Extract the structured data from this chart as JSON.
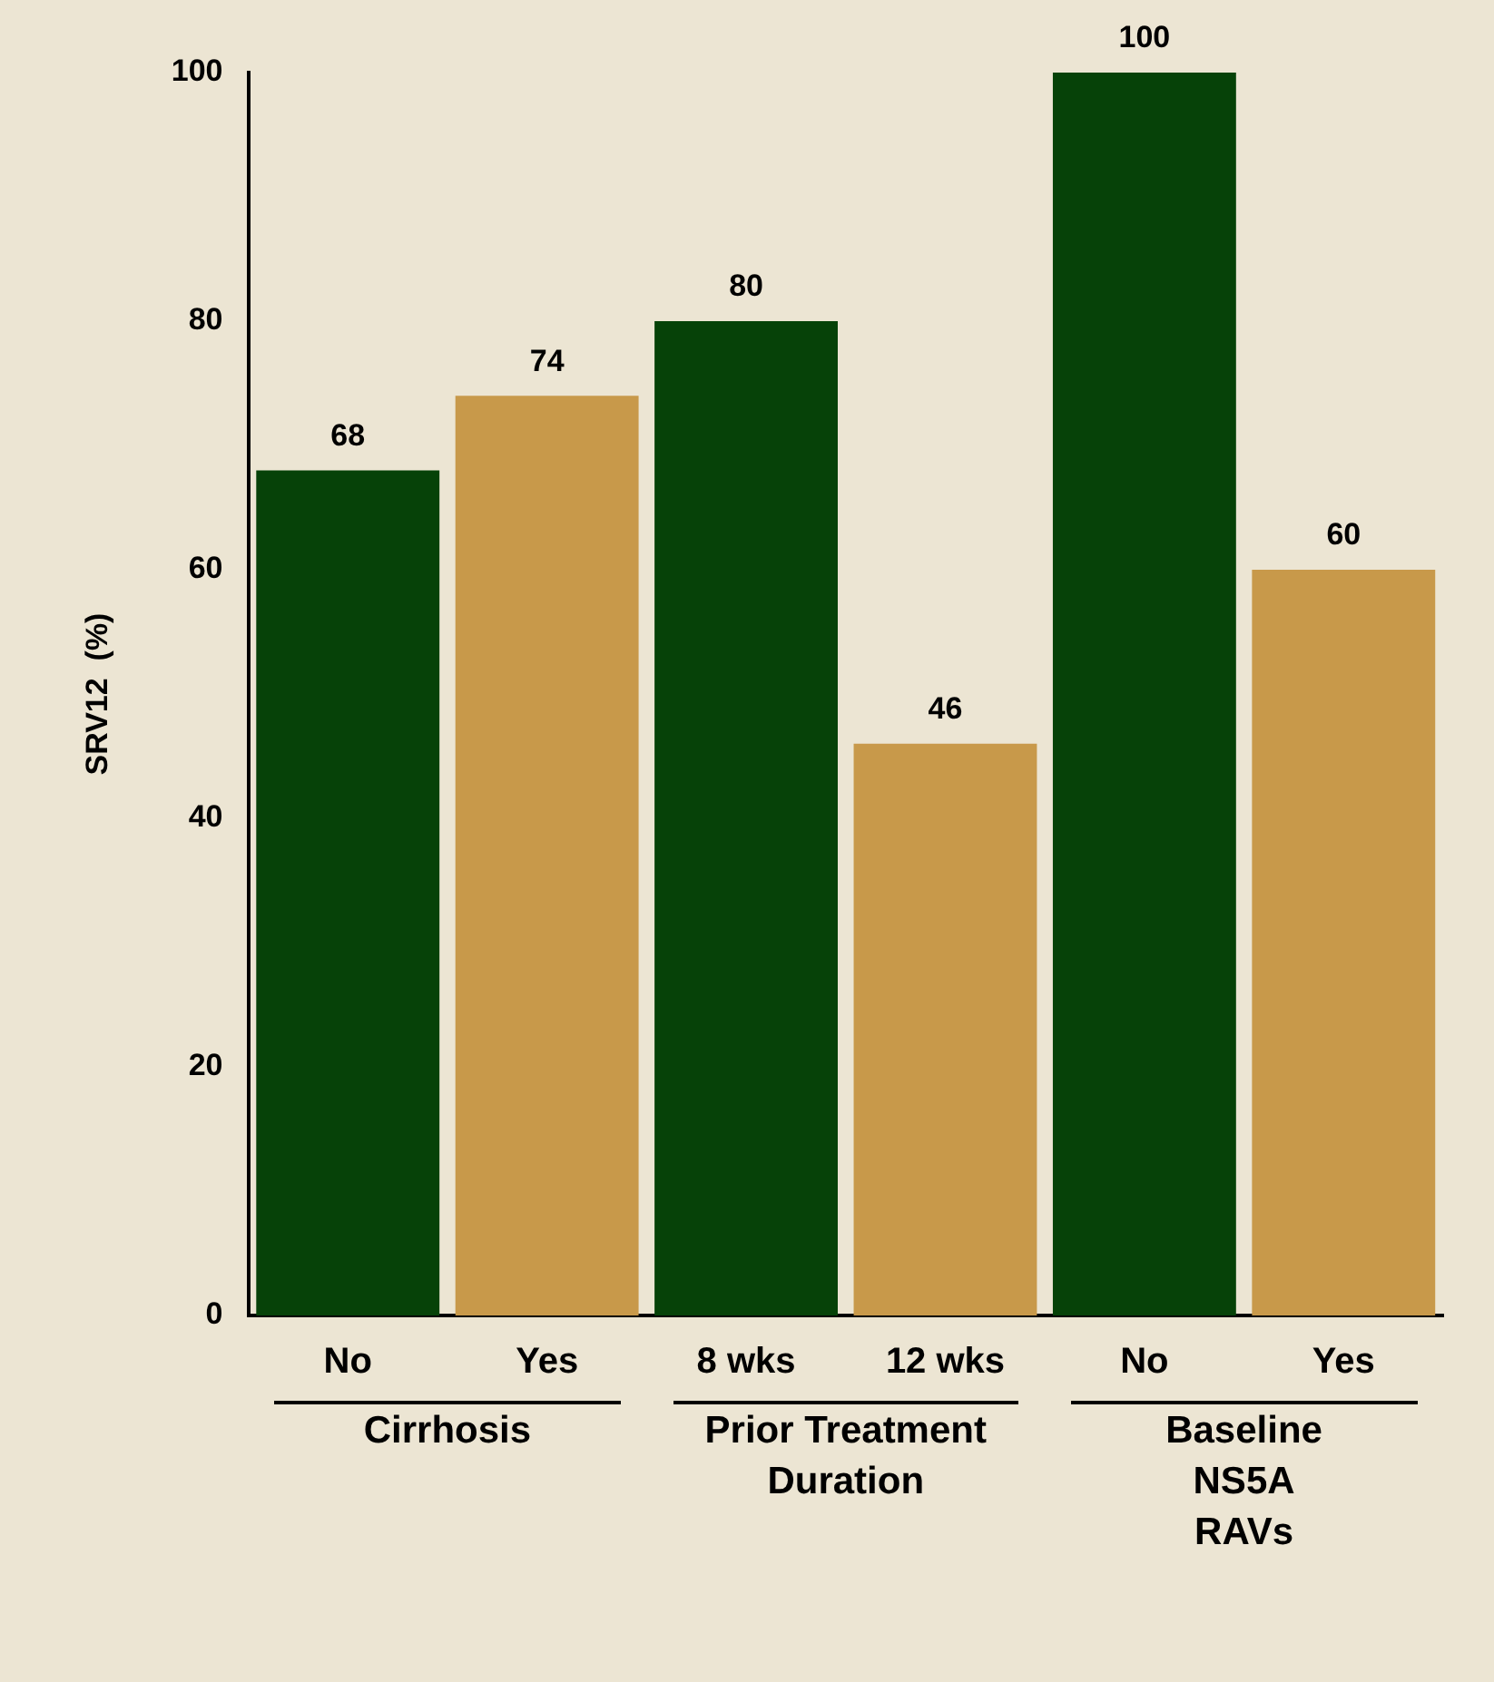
{
  "chart_data": {
    "type": "bar",
    "ylabel": "SRV12  (%)",
    "categories": [
      "No",
      "Yes",
      "8 wks",
      "12 wks",
      "No",
      "Yes"
    ],
    "values": [
      68,
      74,
      80,
      46,
      100,
      60
    ],
    "colors": [
      "#064208",
      "#c8994a",
      "#064208",
      "#c8994a",
      "#064208",
      "#c8994a"
    ],
    "ylim": [
      0,
      100
    ],
    "yticks": [
      0,
      20,
      40,
      60,
      80,
      100
    ],
    "grid": false,
    "legend": false,
    "data_labels": true,
    "annotations": [
      "Cirrhosis",
      "Prior Treatment\nDuration",
      "Baseline\nNS5A\nRAVs"
    ]
  }
}
